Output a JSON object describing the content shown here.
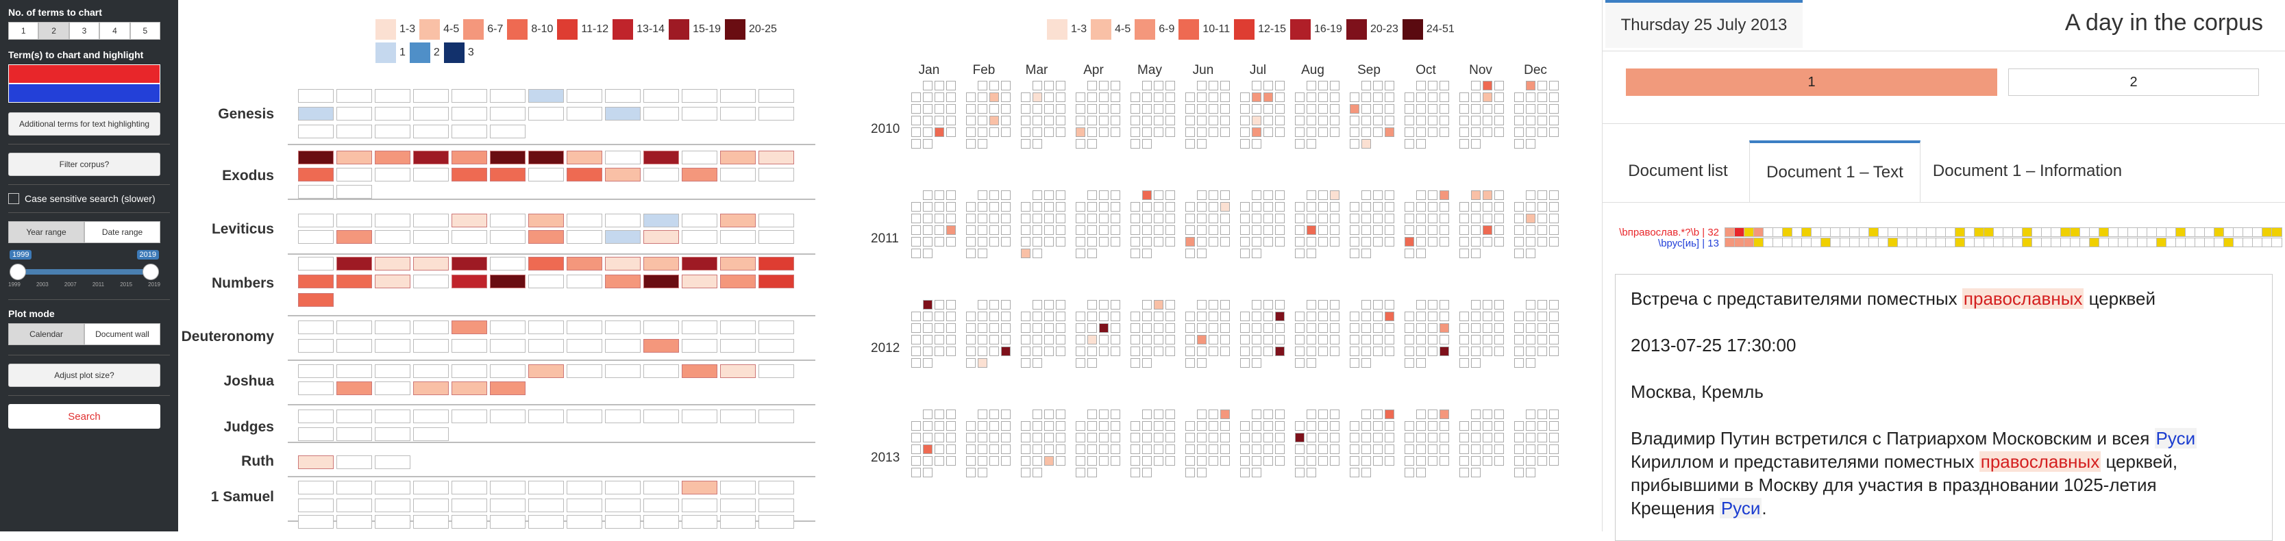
{
  "sidebar": {
    "num_terms_label": "No. of terms to chart",
    "num_options": [
      "1",
      "2",
      "3",
      "4",
      "5"
    ],
    "num_selected": "2",
    "terms_label": "Term(s) to chart and highlight",
    "term_colors": [
      "#e8262a",
      "#2340d8"
    ],
    "additional_terms_button": "Additional terms for text highlighting",
    "filter_button": "Filter corpus?",
    "case_sensitive_label": "Case sensitive search (slower)",
    "range_modes": [
      "Year range",
      "Date range"
    ],
    "range_selected": "Year range",
    "slider": {
      "min_value": "1999",
      "max_value": "2019",
      "ticks": [
        "1999",
        "2003",
        "2007",
        "2011",
        "2015",
        "2019"
      ]
    },
    "plot_mode_label": "Plot mode",
    "plot_modes": [
      "Calendar",
      "Document wall"
    ],
    "plot_selected": "Calendar",
    "adjust_button": "Adjust plot size?",
    "search_button": "Search"
  },
  "legend_left": {
    "red": [
      {
        "label": "1-3",
        "color": "#fbe0d2"
      },
      {
        "label": "4-5",
        "color": "#f9c0a6"
      },
      {
        "label": "6-7",
        "color": "#f4977c"
      },
      {
        "label": "8-10",
        "color": "#ee6a52"
      },
      {
        "label": "11-12",
        "color": "#de3d32"
      },
      {
        "label": "13-14",
        "color": "#c0242b"
      },
      {
        "label": "15-19",
        "color": "#9e1a24"
      },
      {
        "label": "20-25",
        "color": "#6a0d12"
      }
    ],
    "blue": [
      {
        "label": "1",
        "color": "#c5d8ee"
      },
      {
        "label": "2",
        "color": "#4f8fc8"
      },
      {
        "label": "3",
        "color": "#12316c"
      }
    ]
  },
  "legend_right": [
    {
      "label": "1-3",
      "color": "#fbe0d2"
    },
    {
      "label": "4-5",
      "color": "#f9c0a6"
    },
    {
      "label": "6-9",
      "color": "#f4977c"
    },
    {
      "label": "10-11",
      "color": "#ee6a52"
    },
    {
      "label": "12-15",
      "color": "#de3d32"
    },
    {
      "label": "16-19",
      "color": "#b01f28"
    },
    {
      "label": "20-23",
      "color": "#7e111b"
    },
    {
      "label": "24-51",
      "color": "#5a0a10"
    }
  ],
  "books": [
    "Genesis",
    "Exodus",
    "Leviticus",
    "Numbers",
    "Deuteronomy",
    "Joshua",
    "Judges",
    "Ruth",
    "1 Samuel"
  ],
  "calendar": {
    "months": [
      "Jan",
      "Feb",
      "Mar",
      "Apr",
      "May",
      "Jun",
      "Jul",
      "Aug",
      "Sep",
      "Oct",
      "Nov",
      "Dec"
    ],
    "years": [
      "2010",
      "2011",
      "2012",
      "2013"
    ]
  },
  "right_panel": {
    "date_tab": "Thursday 25 July 2013",
    "title": "A day in the corpus",
    "doc_buttons": [
      "1",
      "2"
    ],
    "tabs": [
      "Document list",
      "Document 1 – Text",
      "Document 1 – Information"
    ],
    "strip_labels": [
      {
        "text": "\\bправослав.*?\\b | 32",
        "color": "#e8262a"
      },
      {
        "text": "\\bрус[иь] | 13",
        "color": "#2340d8"
      }
    ],
    "doc": {
      "headline_pre": "Встреча с представителями поместных ",
      "headline_hl": "православных",
      "headline_post": " церквей",
      "datetime": "2013-07-25 17:30:00",
      "place": "Москва, Кремль",
      "p1": "Владимир Путин встретился с Патриархом Московским и всея ",
      "p1_hl": "Руси",
      "p2": "Кириллом и представителями поместных ",
      "p2_hl": "православных",
      "p2_post": " церквей,",
      "p3": "прибывшими в Москву для участия в праздновании 1025-летия",
      "p4": "Крещения ",
      "p4_hl": "Руси",
      "p4_post": "."
    }
  }
}
